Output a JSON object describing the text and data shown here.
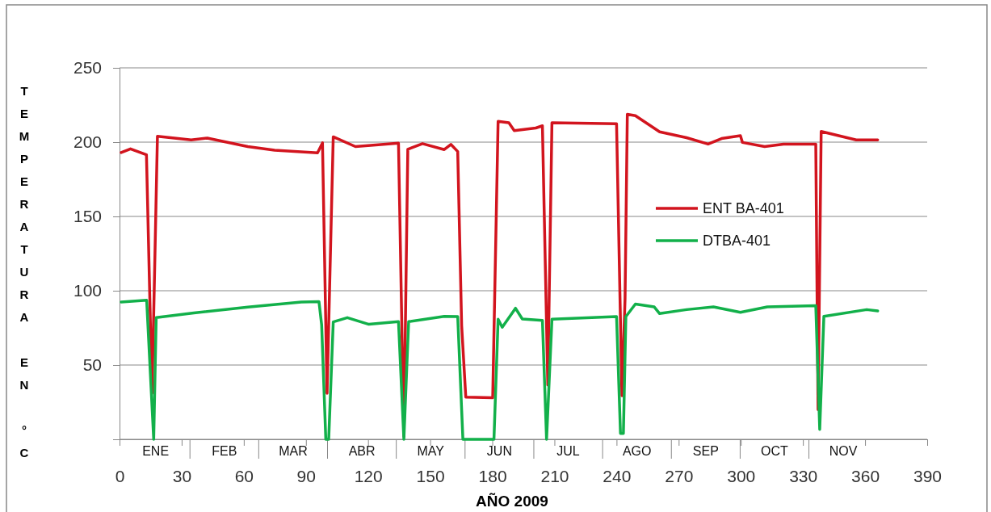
{
  "chart_data": {
    "type": "line",
    "xlabel": "AÑO 2009",
    "ylabel": "TEMPERATURA EN °C",
    "xlim": [
      0,
      390
    ],
    "xticks": [
      0,
      30,
      60,
      90,
      120,
      150,
      180,
      210,
      240,
      270,
      300,
      330,
      360,
      390
    ],
    "ylim": [
      0,
      250
    ],
    "yticks": [
      {
        "value": 0,
        "label": null
      },
      50,
      100,
      150,
      200,
      250
    ],
    "grid": "y",
    "legend": "right",
    "marker": "none",
    "line_style": "solid",
    "annotations": [
      "ENE",
      "FEB",
      "MAR",
      "ABR",
      "MAY",
      "JUN",
      "JUL",
      "AGO",
      "SEP",
      "OCT",
      "NOV"
    ],
    "series": [
      {
        "name": "ENT BA-401",
        "color": "#d2141e",
        "x": [
          0.8,
          5.3,
          13,
          15.7,
          18.3,
          34.6,
          42.4,
          61.9,
          74.9,
          95.6,
          98,
          100.2,
          103.2,
          113.9,
          134.7,
          137.3,
          139.2,
          146.3,
          156.8,
          160,
          163.3,
          165.2,
          167.2,
          180.2,
          182.8,
          188,
          190.6,
          201,
          204.2,
          206.8,
          208.8,
          240,
          242.6,
          244.1,
          245.2,
          249.1,
          260.8,
          273.8,
          284.2,
          290.7,
          299.8,
          300.8,
          311.5,
          320.6,
          336.2,
          337.3,
          338.8,
          355.7,
          366.1
        ],
        "values": [
          193,
          195.5,
          191.5,
          31,
          204,
          201.5,
          202.7,
          197,
          194.6,
          192.8,
          199.5,
          31,
          203.6,
          197,
          199.3,
          2,
          195.2,
          199,
          195,
          198.5,
          193.7,
          76.5,
          28.4,
          28,
          214,
          213,
          207.8,
          209.5,
          211,
          36.6,
          213,
          212.3,
          29.3,
          94.6,
          218.7,
          217.8,
          206.9,
          203,
          198.7,
          202.4,
          204.3,
          199.8,
          197,
          198.7,
          198.7,
          20,
          207.2,
          201.5,
          201.5
        ]
      },
      {
        "name": "DTBA-401",
        "color": "#12b04a",
        "x": [
          0.8,
          13.1,
          16.5,
          17.7,
          35.9,
          62,
          87.8,
          96.3,
          97.6,
          99.6,
          101,
          103.2,
          110,
          120.4,
          134.7,
          137.3,
          139.6,
          156.8,
          163.3,
          165.8,
          180.8,
          182.8,
          184.8,
          191.2,
          194.5,
          204.2,
          206.2,
          208.8,
          240,
          241.9,
          243.3,
          244.5,
          249.1,
          258.2,
          260.8,
          273.8,
          286.8,
          299.8,
          312.8,
          336.2,
          338.1,
          340.1,
          360.8,
          366.1
        ],
        "values": [
          92.4,
          93.6,
          0,
          81.9,
          85,
          89,
          92.4,
          92.7,
          77,
          0,
          0,
          79,
          81.9,
          77.4,
          79.2,
          0,
          79.2,
          82.7,
          82.6,
          0,
          0,
          80.8,
          75.4,
          88.2,
          81,
          80,
          0,
          80.8,
          82.6,
          4,
          4,
          82.6,
          91,
          89.1,
          84.6,
          87.3,
          89.1,
          85.5,
          89.1,
          90,
          6.7,
          82.7,
          87.3,
          86.4
        ]
      }
    ]
  }
}
